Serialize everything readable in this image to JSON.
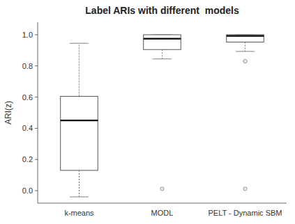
{
  "chart_data": {
    "type": "box",
    "title": "Label ARIs with different  models",
    "ylabel": "ARI(z)",
    "categories": [
      "k-means",
      "MODL",
      "PELT - Dynamic SBM"
    ],
    "ylim": [
      -0.08,
      1.08
    ],
    "yticks": [
      {
        "value": 0.0,
        "label": "0.0"
      },
      0.2,
      0.4,
      0.6,
      0.8,
      {
        "value": 1.0,
        "label": "1.0"
      }
    ],
    "boxes": [
      {
        "q1": 0.13,
        "median": 0.45,
        "q3": 0.605,
        "whisker_low": -0.04,
        "whisker_high": 0.945,
        "outliers": []
      },
      {
        "q1": 0.905,
        "median": 0.975,
        "q3": 1.0,
        "whisker_low": 0.845,
        "whisker_high": 1.0,
        "outliers": [
          0.012
        ]
      },
      {
        "q1": 0.953,
        "median": 0.992,
        "q3": 1.0,
        "whisker_low": 0.893,
        "whisker_high": 1.0,
        "outliers": [
          0.83,
          0.012
        ]
      }
    ],
    "color": "#555555",
    "line_style": "dotted",
    "grid": false
  }
}
